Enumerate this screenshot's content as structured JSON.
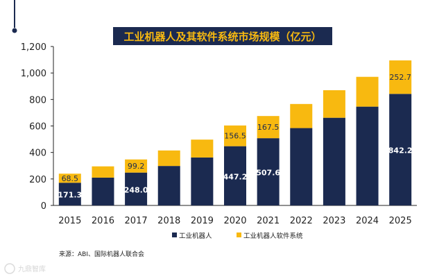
{
  "chart_data": {
    "type": "bar",
    "stacked": true,
    "title": "工业机器人及其软件系统市场规模（亿元）",
    "categories": [
      "2015",
      "2016",
      "2017",
      "2018",
      "2019",
      "2020",
      "2021",
      "2022",
      "2023",
      "2024",
      "2025"
    ],
    "series": [
      {
        "name": "工业机器人",
        "color": "#1b2a50",
        "values": [
          171.3,
          210,
          248.0,
          298,
          362,
          447.2,
          507.6,
          584,
          662,
          746,
          842.2
        ],
        "labels": [
          "171.3",
          "",
          "248.0",
          "",
          "",
          "447.2",
          "507.6",
          "",
          "",
          "",
          "842.2"
        ]
      },
      {
        "name": "工业机器人软件系统",
        "color": "#f8b910",
        "values": [
          68.5,
          85,
          99.2,
          117,
          135,
          156.5,
          167.5,
          182,
          208,
          225,
          252.7
        ],
        "labels": [
          "68.5",
          "",
          "99.2",
          "",
          "",
          "156.5",
          "167.5",
          "",
          "",
          "",
          "252.7"
        ]
      }
    ],
    "yticks": [
      "0",
      "200",
      "400",
      "600",
      "800",
      "1,000",
      "1,200"
    ],
    "ylim": [
      0,
      1200
    ],
    "grid": false,
    "legend": "bottom-center",
    "source": "来源：ABI、国际机器人联合会"
  },
  "watermark": "九鼎智库",
  "colors": {
    "title_bg": "#1b2a50",
    "title_text": "#f8b910",
    "axis": "#222222",
    "text": "#222222"
  }
}
